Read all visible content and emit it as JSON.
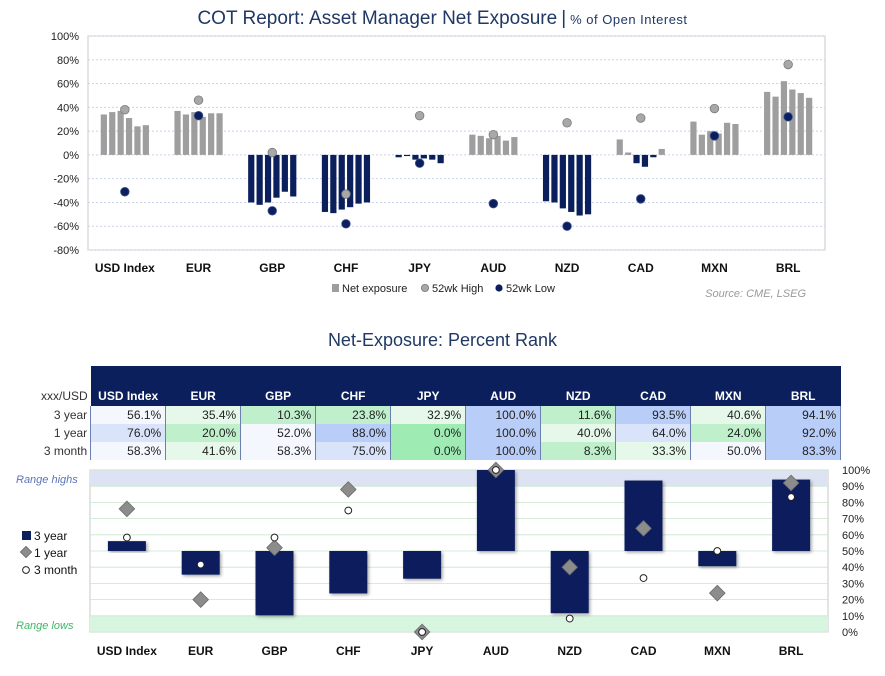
{
  "top_chart": {
    "title": "COT Report: Asset Manager Net Exposure",
    "subtitle": "% of Open Interest",
    "source": "Source: CME, LSEG",
    "legend": {
      "net": "Net exposure",
      "high": "52wk High",
      "low": "52wk Low"
    },
    "colors": {
      "positive": "#9e9e9e",
      "negative": "#0b1f5c",
      "high": "#a8a8a8",
      "low": "#0b1f5c"
    }
  },
  "chart_data": [
    {
      "type": "bar",
      "title": "COT Report: Asset Manager Net Exposure",
      "subtitle": "% of Open Interest",
      "ylim": [
        -80,
        100
      ],
      "yticks": [
        "100%",
        "80%",
        "60%",
        "40%",
        "20%",
        "0%",
        "-20%",
        "-40%",
        "-60%",
        "-80%"
      ],
      "categories": [
        "USD Index",
        "EUR",
        "GBP",
        "CHF",
        "JPY",
        "AUD",
        "NZD",
        "CAD",
        "MXN",
        "BRL"
      ],
      "net_exposure_recent": [
        [
          34,
          36,
          37,
          31,
          24,
          25
        ],
        [
          37,
          34,
          36,
          32,
          35,
          35
        ],
        [
          -40,
          -42,
          -40,
          -36,
          -31,
          -35
        ],
        [
          -48,
          -49,
          -46,
          -44,
          -41,
          -40
        ],
        [
          -2,
          -1,
          -4,
          -3,
          -4,
          -7
        ],
        [
          17,
          16,
          14,
          16,
          12,
          15
        ],
        [
          -39,
          -40,
          -45,
          -48,
          -51,
          -50
        ],
        [
          13,
          2,
          -7,
          -10,
          -2,
          5
        ],
        [
          28,
          17,
          20,
          18,
          27,
          26
        ],
        [
          53,
          49,
          62,
          55,
          52,
          48
        ]
      ],
      "high_52wk": [
        38,
        46,
        2,
        -33,
        33,
        17,
        27,
        31,
        39,
        76
      ],
      "low_52wk": [
        -31,
        33,
        -47,
        -58,
        -7,
        -41,
        -60,
        -37,
        16,
        32
      ],
      "legend": [
        "Net exposure",
        "52wk High",
        "52wk Low"
      ]
    },
    {
      "type": "bar",
      "title": "Net-Exposure: Percent Rank",
      "categories": [
        "USD Index",
        "EUR",
        "GBP",
        "CHF",
        "JPY",
        "AUD",
        "NZD",
        "CAD",
        "MXN",
        "BRL"
      ],
      "ylim": [
        0,
        100
      ],
      "yticks": [
        "100%",
        "90%",
        "80%",
        "70%",
        "60%",
        "50%",
        "40%",
        "30%",
        "20%",
        "10%",
        "0%"
      ],
      "series": [
        {
          "name": "3 year",
          "values": [
            56.1,
            35.4,
            10.3,
            23.8,
            32.9,
            100.0,
            11.6,
            93.5,
            40.6,
            94.1
          ]
        },
        {
          "name": "1 year",
          "values": [
            76.0,
            20.0,
            52.0,
            88.0,
            0.0,
            100.0,
            40.0,
            64.0,
            24.0,
            92.0
          ]
        },
        {
          "name": "3 month",
          "values": [
            58.3,
            41.6,
            58.3,
            75.0,
            0.0,
            100.0,
            8.3,
            33.3,
            50.0,
            83.3
          ]
        }
      ],
      "bands": {
        "high": "Range highs",
        "low": "Range lows"
      }
    }
  ],
  "bottom_chart": {
    "title": "Net-Exposure: Percent Rank",
    "table": {
      "corner": "xxx/USD",
      "columns": [
        "USD Index",
        "EUR",
        "GBP",
        "CHF",
        "JPY",
        "AUD",
        "NZD",
        "CAD",
        "MXN",
        "BRL"
      ],
      "rows": [
        {
          "label": "3 year",
          "values": [
            "56.1%",
            "35.4%",
            "10.3%",
            "23.8%",
            "32.9%",
            "100.0%",
            "11.6%",
            "93.5%",
            "40.6%",
            "94.1%"
          ]
        },
        {
          "label": "1 year",
          "values": [
            "76.0%",
            "20.0%",
            "52.0%",
            "88.0%",
            "0.0%",
            "100.0%",
            "40.0%",
            "64.0%",
            "24.0%",
            "92.0%"
          ]
        },
        {
          "label": "3 month",
          "values": [
            "58.3%",
            "41.6%",
            "58.3%",
            "75.0%",
            "0.0%",
            "100.0%",
            "8.3%",
            "33.3%",
            "50.0%",
            "83.3%"
          ]
        }
      ]
    },
    "legend": {
      "three_year": "3 year",
      "one_year": "1 year",
      "three_month": "3 month"
    },
    "bands": {
      "high": "Range highs",
      "low": "Range lows"
    },
    "colors": {
      "bar": "#0b1f5c",
      "diamond": "#8c8c8c",
      "circle": "#ffffff",
      "band_high": "#dde3f2",
      "band_low": "#d8f5e0"
    }
  }
}
